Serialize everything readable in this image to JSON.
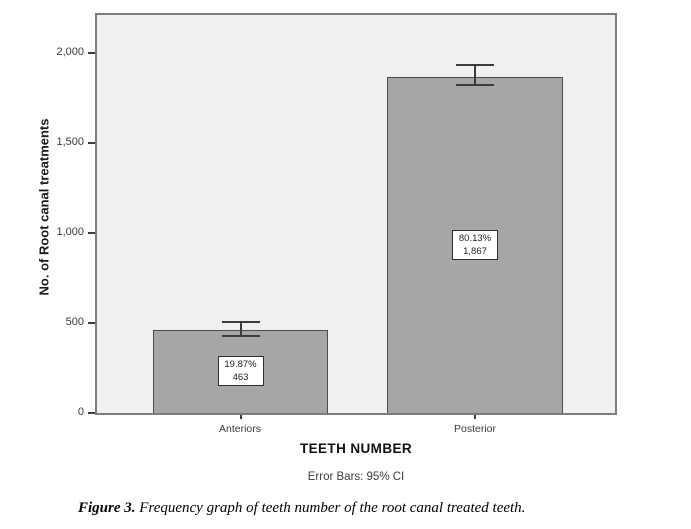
{
  "chart_data": {
    "type": "bar",
    "title": "",
    "categories": [
      "Anteriors",
      "Posterior"
    ],
    "values": [
      463,
      1867
    ],
    "bar_labels": [
      {
        "percent": "19.87%",
        "count": "463"
      },
      {
        "percent": "80.13%",
        "count": "1,867"
      }
    ],
    "error_bars_ci95": [
      [
        422,
        511
      ],
      [
        1814,
        1939
      ]
    ],
    "xlabel": "TEETH NUMBER",
    "ylabel": "No. of Root canal treatments",
    "yticks": [
      {
        "value": 0,
        "label": "0"
      },
      {
        "value": 500,
        "label": "500"
      },
      {
        "value": 1000,
        "label": "1,000"
      },
      {
        "value": 1500,
        "label": "1,500"
      },
      {
        "value": 2000,
        "label": "2,000"
      }
    ],
    "ylim": [
      0,
      2211
    ],
    "footnote": "Error Bars: 95% CI",
    "legend": "none",
    "grid": false,
    "colors": {
      "bar_fill": "#a6a6a6",
      "bar_border": "#4c4c4c",
      "plot_background": "#f0f0f0",
      "frame": "#7d7d7d",
      "error_bar": "#3c3c3c"
    }
  },
  "caption": {
    "label": "Figure 3.",
    "text": " Frequency graph of teeth number of the root canal treated teeth."
  }
}
